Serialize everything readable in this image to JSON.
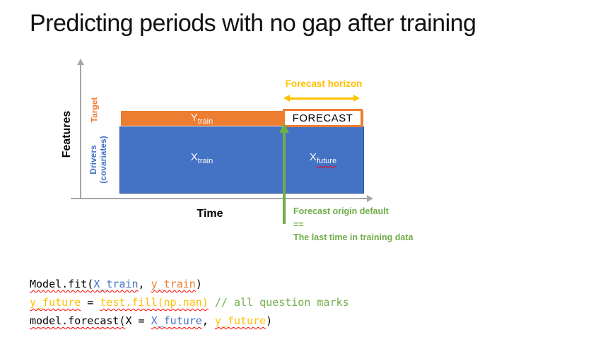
{
  "slide": {
    "title": "Predicting periods with no gap after training"
  },
  "diagram": {
    "axes": {
      "y_label": "Features",
      "x_label": "Time"
    },
    "target_label": "Target",
    "drivers_label_line1": "Drivers",
    "drivers_label_line2": "(covariates)",
    "y_train": {
      "base": "Y",
      "sub": "train"
    },
    "x_train": {
      "base": "X",
      "sub": "train"
    },
    "x_future": {
      "base": "X",
      "sub": "future"
    },
    "forecast_box_label": "FORECAST",
    "forecast_horizon_label": "Forecast horizon",
    "origin_note_line1": "Forecast origin default",
    "origin_note_line2": "==",
    "origin_note_line3": "The last time in training data",
    "colors": {
      "target_orange": "#ED7D31",
      "drivers_blue": "#4472C4",
      "horizon_gold": "#FFC000",
      "origin_green": "#70AD47",
      "axis_gray": "#A6A6A6",
      "spellcheck_red": "#FF0000"
    }
  },
  "code": {
    "lines": [
      {
        "segments": [
          {
            "text": "Model.fit(",
            "color": "black",
            "wavy": true
          },
          {
            "text": "X_train",
            "color": "blue",
            "wavy": true
          },
          {
            "text": ", ",
            "color": "black",
            "wavy": false
          },
          {
            "text": "y_train",
            "color": "orange",
            "wavy": true
          },
          {
            "text": ")",
            "color": "black",
            "wavy": false
          }
        ]
      },
      {
        "segments": [
          {
            "text": "y_future",
            "color": "gold",
            "wavy": true
          },
          {
            "text": " = ",
            "color": "black",
            "wavy": false
          },
          {
            "text": "test.fill(np.nan)",
            "color": "gold",
            "wavy": true
          },
          {
            "text": " ",
            "color": "black",
            "wavy": false
          },
          {
            "text": "// all question marks",
            "color": "green",
            "wavy": false
          }
        ]
      },
      {
        "segments": [
          {
            "text": "model.forecast(",
            "color": "black",
            "wavy": true
          },
          {
            "text": "X = ",
            "color": "black",
            "wavy": false
          },
          {
            "text": "X_future",
            "color": "blue",
            "wavy": true
          },
          {
            "text": ", ",
            "color": "black",
            "wavy": false
          },
          {
            "text": "y_future",
            "color": "gold",
            "wavy": true
          },
          {
            "text": ")",
            "color": "black",
            "wavy": false
          }
        ]
      }
    ]
  }
}
